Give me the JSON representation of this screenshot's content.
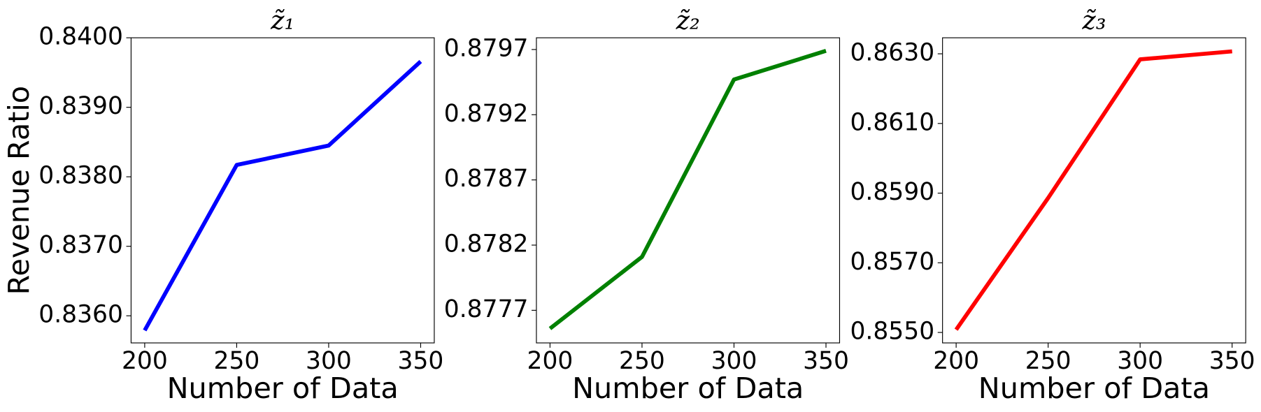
{
  "chart_data": [
    {
      "type": "line",
      "title": "z̃₁",
      "x_label": "Number of Data",
      "y_label": "Revenue Ratio",
      "x": [
        200,
        250,
        300,
        350
      ],
      "values": [
        0.83579,
        0.83817,
        0.83845,
        0.83966
      ],
      "color": "#0000ff",
      "xlim": [
        192.6,
        357.4
      ],
      "xticks": [
        200,
        250,
        300,
        350
      ],
      "ylim": [
        0.83561,
        0.84
      ],
      "yticks": [
        {
          "value": 0.836,
          "label": "0.8360"
        },
        {
          "value": 0.837,
          "label": "0.8370"
        },
        {
          "value": 0.838,
          "label": "0.8380"
        },
        {
          "value": 0.839,
          "label": "0.8390"
        },
        {
          "value": 0.84,
          "label": "0.8400"
        }
      ]
    },
    {
      "type": "line",
      "title": "z̃₂",
      "x_label": "Number of Data",
      "x": [
        200,
        250,
        300,
        350
      ],
      "values": [
        0.87756,
        0.87811,
        0.87947,
        0.87969
      ],
      "color": "#008000",
      "xlim": [
        192.6,
        357.4
      ],
      "xticks": [
        200,
        250,
        300,
        350
      ],
      "ylim": [
        0.87745,
        0.87979
      ],
      "yticks": [
        0.8777,
        0.8782,
        0.8787,
        0.8792,
        0.8797
      ]
    },
    {
      "type": "line",
      "title": "z̃₃",
      "x_label": "Number of Data",
      "x": [
        200,
        250,
        300,
        350
      ],
      "values": [
        0.85508,
        0.85886,
        0.86284,
        0.86307
      ],
      "color": "#ff0000",
      "xlim": [
        192.6,
        357.4
      ],
      "xticks": [
        200,
        250,
        300,
        350
      ],
      "ylim": [
        0.8547,
        0.86346
      ],
      "yticks": [
        {
          "value": 0.855,
          "label": "0.8550"
        },
        {
          "value": 0.857,
          "label": "0.8570"
        },
        {
          "value": 0.859,
          "label": "0.8590"
        },
        {
          "value": 0.861,
          "label": "0.8610"
        },
        {
          "value": 0.863,
          "label": "0.8630"
        }
      ]
    }
  ]
}
